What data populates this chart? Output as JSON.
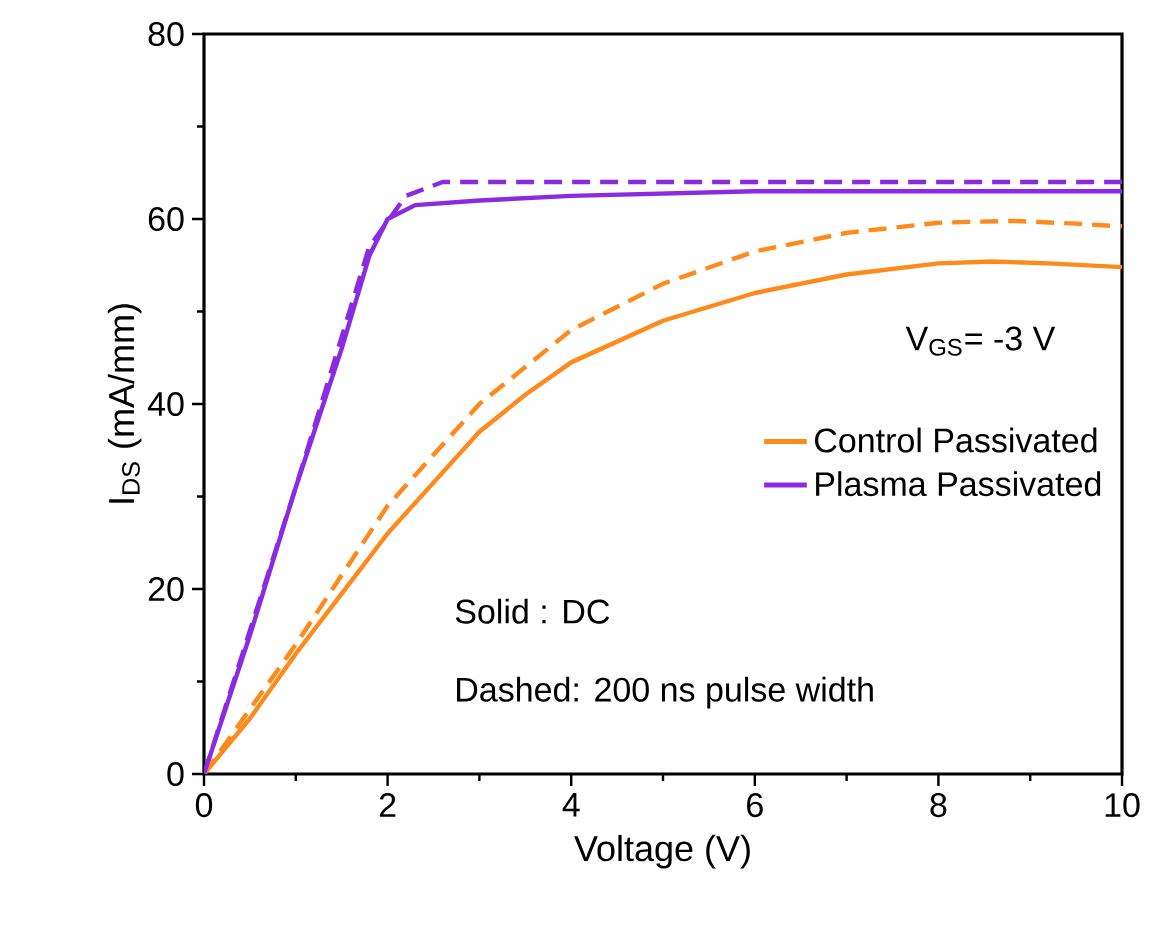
{
  "chart_data": {
    "type": "line",
    "xlabel": "Voltage (V)",
    "ylabel": "I$_{DS}$ (mA/mm)",
    "xlim": [
      0,
      10
    ],
    "ylim": [
      0,
      80
    ],
    "xticks": [
      0,
      {
        "value": 1,
        "label": null
      },
      2,
      {
        "value": 3,
        "label": null
      },
      4,
      {
        "value": 5,
        "label": null
      },
      6,
      {
        "value": 7,
        "label": null
      },
      8,
      {
        "value": 9,
        "label": null
      },
      10
    ],
    "yticks": [
      0,
      {
        "value": 10,
        "label": null
      },
      20,
      {
        "value": 30,
        "label": null
      },
      40,
      {
        "value": 50,
        "label": null
      },
      60,
      {
        "value": 70,
        "label": null
      },
      80
    ],
    "legend": "right",
    "grid": false,
    "marker": "none",
    "annotations": [
      "V$_{GS}$= -3 V",
      "Solid     : DC",
      "Dashed: 200 ns pulse width"
    ],
    "series": [
      {
        "name": "Control Passivated",
        "color": "#ff8a1c",
        "line_style": "solid",
        "x": [
          0,
          0.5,
          1,
          1.5,
          2,
          2.5,
          3,
          3.5,
          4,
          5,
          6,
          7,
          8,
          8.6,
          9.2,
          10
        ],
        "values": [
          0,
          6,
          13,
          19.5,
          26,
          31.5,
          37,
          41,
          44.5,
          49,
          52,
          54,
          55.2,
          55.4,
          55.2,
          54.8
        ]
      },
      {
        "name": "Plasma Passivated",
        "color": "#8a2be2",
        "line_style": "solid",
        "x": [
          0,
          0.5,
          1,
          1.5,
          1.8,
          2,
          2.3,
          3,
          4,
          6,
          8,
          10
        ],
        "values": [
          0,
          15,
          31,
          46,
          56,
          60,
          61.5,
          62,
          62.5,
          63,
          63,
          63
        ]
      },
      {
        "color": "#ff8a1c",
        "line_style": "dashed",
        "x": [
          0,
          1,
          2,
          3,
          4,
          5,
          6,
          7,
          8,
          8.8,
          9.5,
          10
        ],
        "values": [
          0,
          14,
          29,
          40,
          48,
          53,
          56.5,
          58.5,
          59.6,
          59.8,
          59.5,
          59.2
        ]
      },
      {
        "color": "#8a2be2",
        "line_style": "dashed",
        "x": [
          0,
          1,
          1.8,
          2.2,
          2.6,
          4,
          6,
          8,
          10
        ],
        "values": [
          0,
          31,
          57,
          62.5,
          64,
          64,
          64,
          64,
          64
        ]
      }
    ]
  }
}
